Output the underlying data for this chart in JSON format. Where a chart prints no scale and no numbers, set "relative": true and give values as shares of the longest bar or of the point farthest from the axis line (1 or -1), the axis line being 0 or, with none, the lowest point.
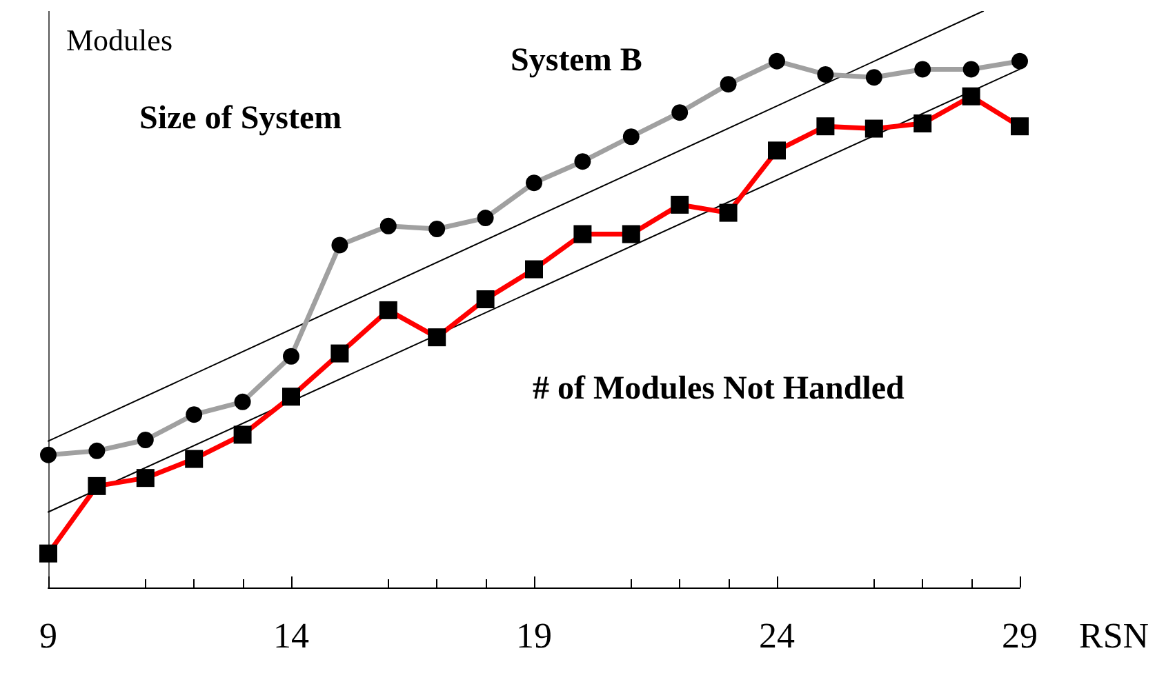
{
  "chart_data": {
    "type": "line",
    "relative": true,
    "ylabel": "Modules",
    "xlabel": "RSN",
    "xlim": [
      9,
      29
    ],
    "xticks": [
      9,
      14,
      19,
      24,
      29
    ],
    "grid": false,
    "annotations": [
      "System B",
      "Size of System",
      "# of Modules Not Handled"
    ],
    "series": [
      {
        "color": "#a0a0a0",
        "marker": "circle",
        "x": [
          9,
          10,
          11,
          12,
          13,
          14,
          15,
          16,
          17,
          18,
          19,
          20,
          21,
          22,
          23,
          24,
          25,
          26,
          27,
          28,
          29
        ],
        "values": [
          0.23,
          0.237,
          0.256,
          0.3,
          0.322,
          0.401,
          0.594,
          0.627,
          0.622,
          0.641,
          0.702,
          0.739,
          0.782,
          0.824,
          0.873,
          0.913,
          0.89,
          0.885,
          0.899,
          0.899,
          0.913
        ]
      },
      {
        "color": "#ff0000",
        "marker": "square",
        "x": [
          9,
          10,
          11,
          12,
          13,
          14,
          15,
          16,
          17,
          18,
          19,
          20,
          21,
          22,
          23,
          24,
          25,
          26,
          27,
          28,
          29
        ],
        "values": [
          0.059,
          0.176,
          0.19,
          0.223,
          0.265,
          0.331,
          0.406,
          0.481,
          0.434,
          0.5,
          0.552,
          0.613,
          0.613,
          0.664,
          0.65,
          0.758,
          0.8,
          0.796,
          0.805,
          0.852,
          0.8
        ]
      },
      {
        "color": "#000000",
        "marker": "none",
        "x": [
          9,
          28.25
        ],
        "values": [
          0.254,
          1
        ]
      },
      {
        "color": "#000000",
        "marker": "none",
        "x": [
          9,
          29
        ],
        "values": [
          0.131,
          0.899
        ]
      }
    ]
  }
}
